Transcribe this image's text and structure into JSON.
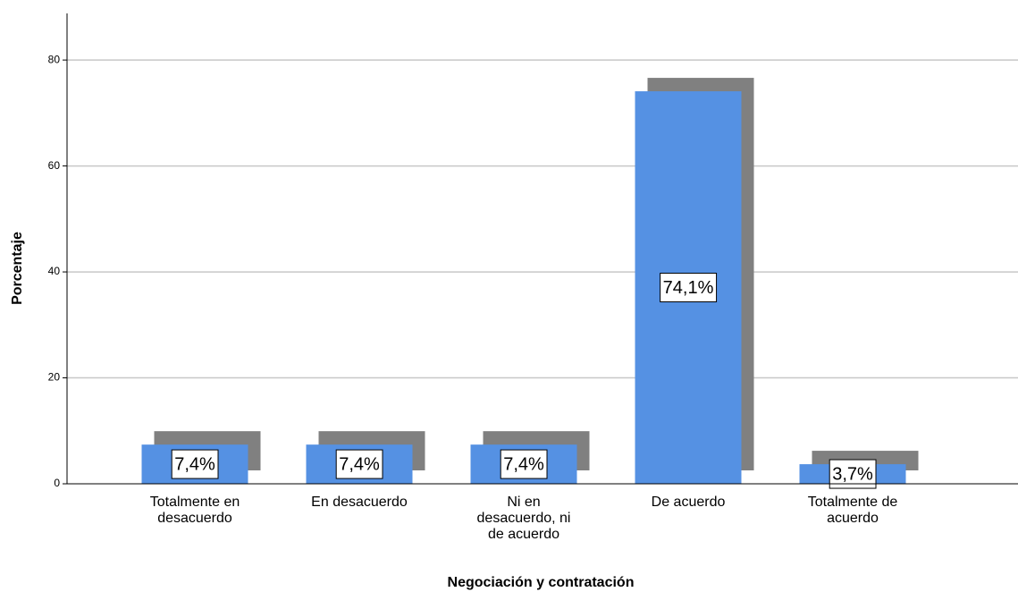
{
  "chart_data": {
    "type": "bar",
    "x_label": "Negociación y contratación",
    "y_label": "Porcentaje",
    "categories": [
      "Totalmente en desacuerdo",
      "En desacuerdo",
      "Ni en desacuerdo, ni de acuerdo",
      "De acuerdo",
      "Totalmente de acuerdo"
    ],
    "values": [
      7.4,
      7.4,
      7.4,
      74.1,
      3.7
    ],
    "value_labels": [
      "7,4%",
      "7,4%",
      "7,4%",
      "74,1%",
      "3,7%"
    ],
    "color": "#5591e3",
    "shadow_color": "#808080",
    "ylim": [
      0,
      88.8
    ],
    "yticks": [
      0,
      20,
      40,
      60,
      80
    ],
    "grid": true
  }
}
